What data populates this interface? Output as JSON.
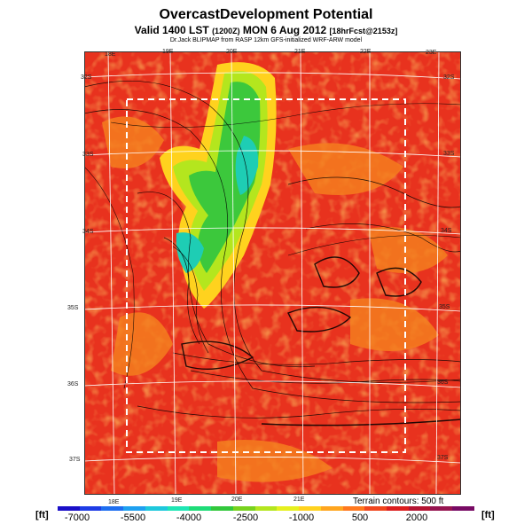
{
  "header": {
    "title": "OvercastDevelopment Potential",
    "subtitle_main": "Valid 1400 LST",
    "subtitle_utc": "(1200Z)",
    "subtitle_date": "MON 6 Aug 2012",
    "subtitle_fcst": "[18hrFcst@2153z]",
    "credit": "Dr.Jack BLIPMAP from RASP 12km GFS-initialized WRF-ARW model"
  },
  "map": {
    "lon_ticks_top": [
      "18E",
      "19E",
      "20E",
      "21E",
      "22E",
      "23E"
    ],
    "lon_ticks_bottom": [
      "18E",
      "19E",
      "20E",
      "21E"
    ],
    "lat_ticks_left": [
      "32S",
      "33S",
      "34S",
      "35S",
      "36S",
      "37S"
    ],
    "lat_ticks_right": [
      "32S",
      "33S",
      "34S",
      "35S",
      "36S",
      "37S"
    ],
    "terrain_note": "Terrain contours: 500 ft"
  },
  "colorbar": {
    "unit_left": "[ft]",
    "unit_right": "[ft]",
    "labels": [
      "-7000",
      "-5500",
      "-4000",
      "-2500",
      "-1000",
      "500",
      "2000"
    ],
    "colors": [
      "#1a0fc8",
      "#1e3ce6",
      "#1e6ef0",
      "#1ea0f0",
      "#1ec8dc",
      "#1ee6b4",
      "#1edc78",
      "#32c83c",
      "#78d21e",
      "#b4e61e",
      "#e6f01e",
      "#ffd21e",
      "#ffa51e",
      "#ff781e",
      "#f0461e",
      "#dc1e1e",
      "#b41432",
      "#961450",
      "#780a64"
    ]
  },
  "colors": {
    "main_field": "#e8321e",
    "warm_field": "#f06e1e",
    "green_tongue": "#3cc83c",
    "cyan_core": "#1ecdb4",
    "contour": "#000000",
    "grid": "#ffffff"
  }
}
